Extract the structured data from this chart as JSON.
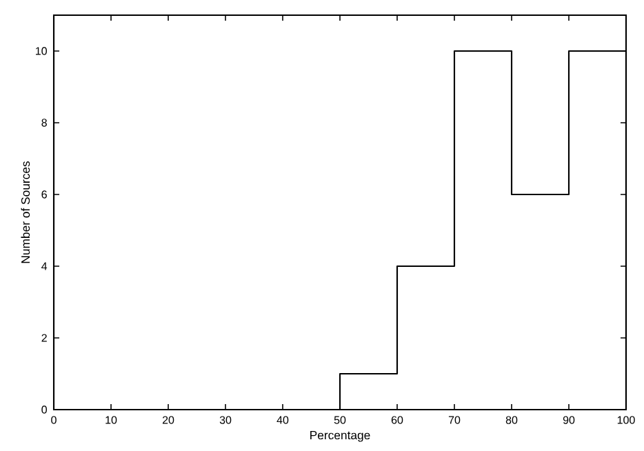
{
  "chart_data": {
    "type": "histogram",
    "xlabel": "Percentage",
    "ylabel": "Number of Sources",
    "bins": [
      50,
      60,
      70,
      80,
      90,
      100
    ],
    "values": [
      1,
      4,
      10,
      6,
      10
    ],
    "color": "#000000",
    "xlim": [
      0,
      100
    ],
    "xticks": [
      0,
      10,
      20,
      30,
      40,
      50,
      60,
      70,
      80,
      90,
      100
    ],
    "ylim": [
      0,
      11
    ],
    "yticks": [
      0,
      2,
      4,
      6,
      8,
      10
    ],
    "grid": false
  }
}
